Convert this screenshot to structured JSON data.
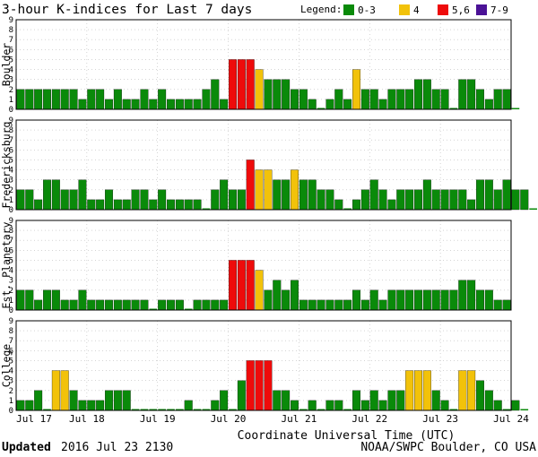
{
  "title": "3-hour K-indices for Last 7 days",
  "legend": {
    "label": "Legend:",
    "items": [
      {
        "label": "0-3",
        "color": "#0a8a0a"
      },
      {
        "label": "4",
        "color": "#f2c20a"
      },
      {
        "label": "5,6",
        "color": "#ee0b0b"
      },
      {
        "label": "7-9",
        "color": "#4b1296"
      }
    ]
  },
  "footer": {
    "updated_label": "Updated",
    "updated_value": "2016 Jul 23 2130",
    "source": "NOAA/SWPC Boulder, CO USA"
  },
  "chart_data": {
    "type": "bar",
    "xlabel": "Coordinate Universal Time (UTC)",
    "x_ticks": [
      "Jul 17",
      "Jul 18",
      "Jul 19",
      "Jul 20",
      "Jul 21",
      "Jul 22",
      "Jul 23",
      "Jul 24"
    ],
    "ylim": [
      0,
      9
    ],
    "y_ticks": [
      0,
      1,
      2,
      3,
      4,
      5,
      6,
      7,
      8,
      9
    ],
    "bar_interval": "3 hours",
    "series": [
      {
        "name": "Boulder",
        "values": [
          2,
          2,
          2,
          2,
          2,
          2,
          2,
          1,
          2,
          2,
          1,
          2,
          1,
          1,
          2,
          1,
          2,
          1,
          1,
          1,
          1,
          2,
          3,
          1,
          5,
          5,
          5,
          4,
          3,
          3,
          3,
          2,
          2,
          1,
          0,
          1,
          2,
          1,
          4,
          2,
          2,
          1,
          2,
          2,
          2,
          3,
          3,
          2,
          2,
          0,
          3,
          3,
          2,
          1,
          2,
          2,
          0
        ]
      },
      {
        "name": "Fredericksburg",
        "values": [
          2,
          2,
          1,
          3,
          3,
          2,
          2,
          3,
          1,
          1,
          2,
          1,
          1,
          2,
          2,
          1,
          2,
          1,
          1,
          1,
          1,
          0,
          2,
          3,
          2,
          2,
          5,
          4,
          4,
          3,
          3,
          4,
          3,
          3,
          2,
          2,
          1,
          0,
          1,
          2,
          3,
          2,
          1,
          2,
          2,
          2,
          3,
          2,
          2,
          2,
          2,
          1,
          3,
          3,
          2,
          3,
          2,
          2,
          0
        ]
      },
      {
        "name": "Est. Planetary",
        "values": [
          2,
          2,
          1,
          2,
          2,
          1,
          1,
          2,
          1,
          1,
          1,
          1,
          1,
          1,
          1,
          0,
          1,
          1,
          1,
          0,
          1,
          1,
          1,
          1,
          5,
          5,
          5,
          4,
          2,
          3,
          2,
          3,
          1,
          1,
          1,
          1,
          1,
          1,
          2,
          1,
          2,
          1,
          2,
          2,
          2,
          2,
          2,
          2,
          2,
          2,
          3,
          3,
          2,
          2,
          1,
          1
        ]
      },
      {
        "name": "College",
        "values": [
          1,
          1,
          2,
          0,
          4,
          4,
          2,
          1,
          1,
          1,
          2,
          2,
          2,
          0,
          0,
          0,
          0,
          0,
          0,
          1,
          0,
          0,
          1,
          2,
          0,
          3,
          5,
          5,
          5,
          2,
          2,
          1,
          0,
          1,
          0,
          1,
          1,
          0,
          2,
          1,
          2,
          1,
          2,
          2,
          4,
          4,
          4,
          2,
          1,
          0,
          4,
          4,
          3,
          2,
          1,
          0,
          1,
          0
        ]
      }
    ]
  }
}
